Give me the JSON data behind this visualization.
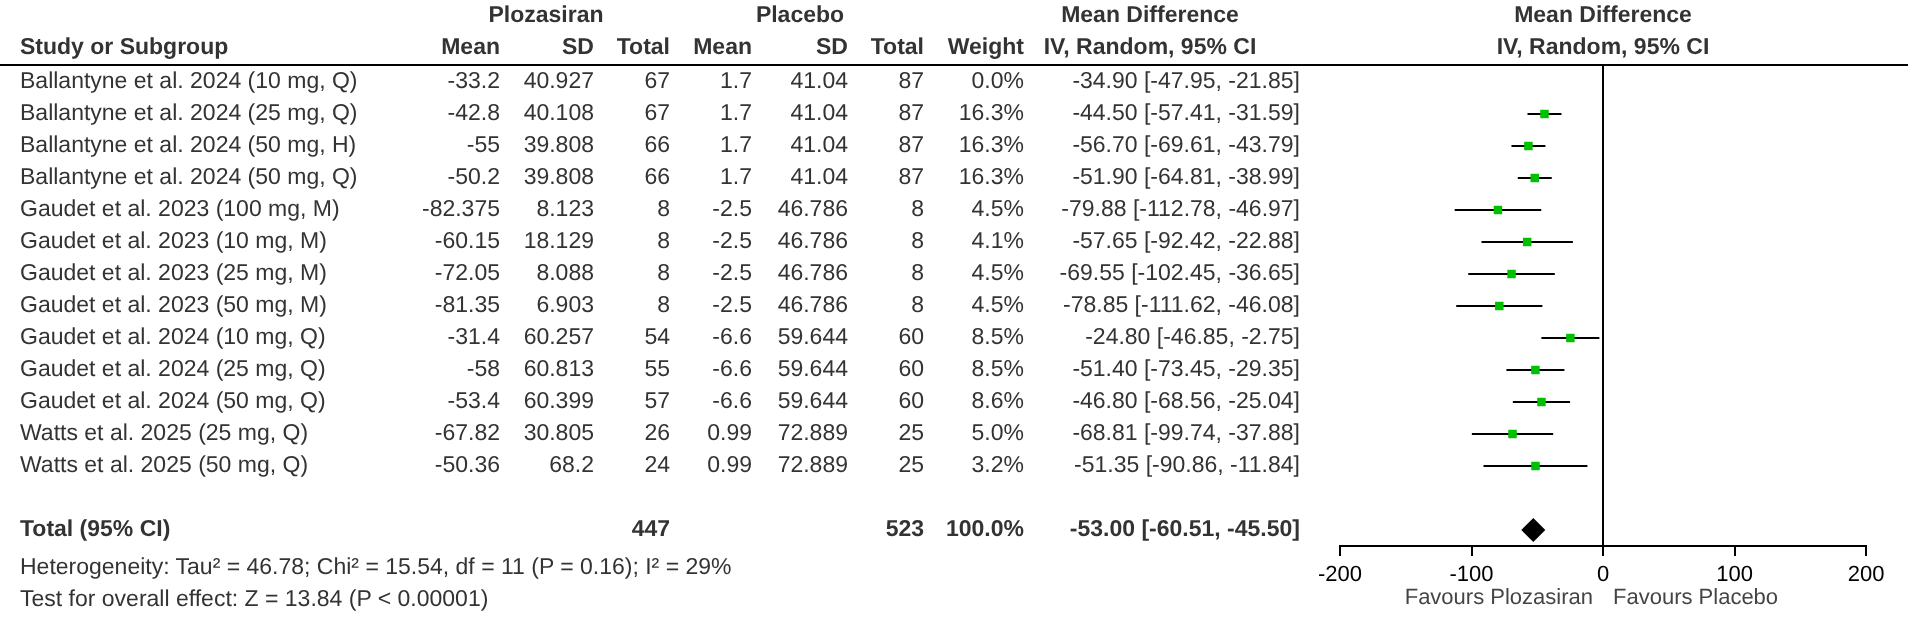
{
  "chart_data": [
    {
      "type": "other",
      "ylabel": "Study or Subgroup",
      "categories": [
        "Ballantyne et al. 2024 (10 mg, Q)",
        "Ballantyne et al. 2024 (25 mg, Q)",
        "Ballantyne et al. 2024 (50 mg, H)",
        "Ballantyne et al. 2024 (50 mg, Q)",
        "Gaudet et al. 2023 (100 mg, M)",
        "Gaudet et al. 2023 (10 mg, M)",
        "Gaudet et al. 2023 (25 mg, M)",
        "Gaudet et al. 2023 (50 mg, M)",
        "Gaudet et al. 2024 (10 mg, Q)",
        "Gaudet et al. 2024 (25 mg, Q)",
        "Gaudet et al. 2024 (50 mg, Q)",
        "Watts et al. 2025 (25 mg, Q)",
        "Watts et al. 2025 (50 mg, Q)",
        null,
        "Total (95% CI)"
      ],
      "series": [
        {
          "name": "Mean",
          "values": [
            -33.2,
            -42.8,
            -55,
            -50.2,
            -82.375,
            -60.15,
            -72.05,
            -81.35,
            -31.4,
            -58,
            -53.4,
            -67.82,
            -50.36,
            null,
            null
          ],
          "value_labels": [
            "-33.2",
            "-42.8",
            "-55",
            "-50.2",
            "-82.375",
            "-60.15",
            "-72.05",
            "-81.35",
            "-31.4",
            "-58",
            "-53.4",
            "-67.82",
            "-50.36",
            null,
            null
          ]
        },
        {
          "name": "SD",
          "values": [
            40.927,
            40.108,
            39.808,
            39.808,
            8.123,
            18.129,
            8.088,
            6.903,
            60.257,
            60.813,
            60.399,
            30.805,
            68.2,
            null,
            null
          ],
          "value_labels": [
            "40.927",
            "40.108",
            "39.808",
            "39.808",
            "8.123",
            "18.129",
            "8.088",
            "6.903",
            "60.257",
            "60.813",
            "60.399",
            "30.805",
            "68.2",
            null,
            null
          ]
        },
        {
          "name": "Total",
          "values": [
            67,
            67,
            66,
            66,
            8,
            8,
            8,
            8,
            54,
            55,
            57,
            26,
            24,
            null,
            447
          ],
          "value_labels": [
            "67",
            "67",
            "66",
            "66",
            "8",
            "8",
            "8",
            "8",
            "54",
            "55",
            "57",
            "26",
            "24",
            null,
            "447"
          ]
        },
        {
          "name": "Mean",
          "values": [
            1.7,
            1.7,
            1.7,
            1.7,
            -2.5,
            -2.5,
            -2.5,
            -2.5,
            -6.6,
            -6.6,
            -6.6,
            0.99,
            0.99,
            null,
            null
          ],
          "value_labels": [
            "1.7",
            "1.7",
            "1.7",
            "1.7",
            "-2.5",
            "-2.5",
            "-2.5",
            "-2.5",
            "-6.6",
            "-6.6",
            "-6.6",
            "0.99",
            "0.99",
            null,
            null
          ]
        },
        {
          "name": "SD",
          "values": [
            41.04,
            41.04,
            41.04,
            41.04,
            46.786,
            46.786,
            46.786,
            46.786,
            59.644,
            59.644,
            59.644,
            72.889,
            72.889,
            null,
            null
          ],
          "value_labels": [
            "41.04",
            "41.04",
            "41.04",
            "41.04",
            "46.786",
            "46.786",
            "46.786",
            "46.786",
            "59.644",
            "59.644",
            "59.644",
            "72.889",
            "72.889",
            null,
            null
          ]
        },
        {
          "name": "Total",
          "values": [
            87,
            87,
            87,
            87,
            8,
            8,
            8,
            8,
            60,
            60,
            60,
            25,
            25,
            null,
            523
          ],
          "value_labels": [
            "87",
            "87",
            "87",
            "87",
            "8",
            "8",
            "8",
            "8",
            "60",
            "60",
            "60",
            "25",
            "25",
            null,
            "523"
          ]
        },
        {
          "name": "Weight",
          "values": [
            0.0,
            16.3,
            16.3,
            16.3,
            4.5,
            4.1,
            4.5,
            4.5,
            8.5,
            8.5,
            8.6,
            5.0,
            3.2,
            null,
            100.0
          ],
          "value_labels": [
            "0.0%",
            "16.3%",
            "16.3%",
            "16.3%",
            "4.5%",
            "4.1%",
            "4.5%",
            "4.5%",
            "8.5%",
            "8.5%",
            "8.6%",
            "5.0%",
            "3.2%",
            null,
            "100.0%"
          ]
        },
        {
          "name": "Mean Difference\nIV, Random, 95% CI",
          "values": [
            -34.9,
            -44.5,
            -56.7,
            -51.9,
            -79.88,
            -57.65,
            -69.55,
            -78.85,
            -24.8,
            -51.4,
            -46.8,
            -68.81,
            -51.35,
            null,
            -53.0
          ],
          "value_labels": [
            "-34.90 [-47.95, -21.85]",
            "-44.50 [-57.41, -31.59]",
            "-56.70 [-69.61, -43.79]",
            "-51.90 [-64.81, -38.99]",
            "-79.88 [-112.78, -46.97]",
            "-57.65 [-92.42, -22.88]",
            "-69.55 [-102.45, -36.65]",
            "-78.85 [-111.62, -46.08]",
            "-24.80 [-46.85, -2.75]",
            "-51.40 [-73.45, -29.35]",
            "-46.80 [-68.56, -25.04]",
            "-68.81 [-99.74, -37.88]",
            "-51.35 [-90.86, -11.84]",
            null,
            "-53.00 [-60.51, -45.50]"
          ]
        }
      ],
      "annotations": [
        "Plozasiran",
        "Placebo",
        "Heterogeneity: Tau² = 46.78; Chi² = 15.54, df = 11 (P = 0.16); I² = 29%",
        "Test for overall effect: Z = 13.84 (P < 0.00001)"
      ]
    },
    {
      "type": "scatter",
      "title": "Mean Difference\nIV, Random, 95% CI",
      "orientation": "horizontal",
      "categories": [
        null,
        null,
        null,
        null,
        null,
        null,
        null,
        null,
        null,
        null,
        null,
        null,
        null,
        null,
        null
      ],
      "series": [
        {
          "color": "#00c000",
          "marker": "square",
          "values": [
            null,
            -44.5,
            -56.7,
            -51.9,
            -79.88,
            -57.65,
            -69.55,
            -78.85,
            -24.8,
            -51.4,
            -46.8,
            -68.81,
            -51.35,
            null,
            null
          ],
          "errors": [
            null,
            [
              -57.41,
              -31.59
            ],
            [
              -69.61,
              -43.79
            ],
            [
              -64.81,
              -38.99
            ],
            [
              -112.78,
              -46.97
            ],
            [
              -92.42,
              -22.88
            ],
            [
              -102.45,
              -36.65
            ],
            [
              -111.62,
              -46.08
            ],
            [
              -46.85,
              -2.75
            ],
            [
              -73.45,
              -29.35
            ],
            [
              -68.56,
              -25.04
            ],
            [
              -99.74,
              -37.88
            ],
            [
              -90.86,
              -11.84
            ],
            null,
            null
          ]
        },
        {
          "color": "#000000",
          "marker": "diamond",
          "values": [
            null,
            null,
            null,
            null,
            null,
            null,
            null,
            null,
            null,
            null,
            null,
            null,
            null,
            null,
            -53.0
          ],
          "errors": [
            null,
            null,
            null,
            null,
            null,
            null,
            null,
            null,
            null,
            null,
            null,
            null,
            null,
            null,
            [
              -60.51,
              -45.5
            ]
          ]
        }
      ],
      "xlim": [
        -200,
        200
      ],
      "xticks": [
        -200,
        -100,
        0,
        100,
        200
      ],
      "tick_labels": "x",
      "grid": false,
      "legend": false,
      "ref_lines": [
        {
          "axis": "x",
          "value": 0,
          "color": "#000000"
        }
      ],
      "annotations": [
        "Favours Plozasiran",
        "Favours Placebo"
      ]
    }
  ]
}
